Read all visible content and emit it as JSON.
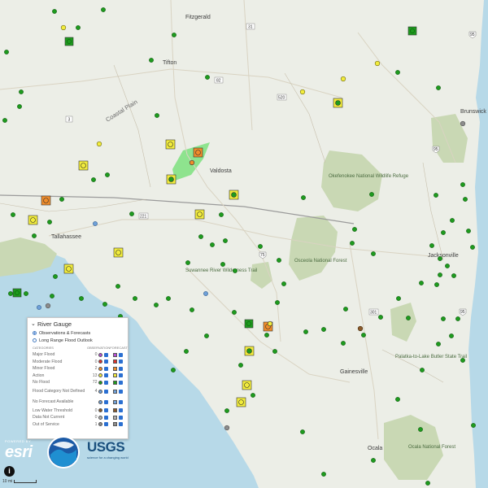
{
  "map": {
    "places": {
      "fitzgerald": "Fitzgerald",
      "tifton": "Tifton",
      "coastal_plain": "Coastal Plain",
      "valdosta": "Valdosta",
      "tallahassee": "Tallahassee",
      "okefenokee": "Okefenokee National Wildlife Refuge",
      "osceola": "Osceola National Forest",
      "suwannee": "Suwannee River Wilderness Trail",
      "jacksonville": "Jacksonville",
      "brunswick": "Brunswick",
      "palatka": "Palatka-to-Lake Butler State Trail",
      "gainesville": "Gainesville",
      "ocala": "Ocala",
      "ocala_nf": "Ocala National Forest"
    },
    "routes": {
      "r31": "31",
      "r95a": "95",
      "r82": "82",
      "r520": "520",
      "r3": "3",
      "r95b": "95",
      "r221": "221",
      "r75": "75",
      "r301": "301",
      "r95c": "95"
    },
    "colors": {
      "no_flood": "#1e9b1e",
      "action": "#f2ec3c",
      "minor": "#f08c2a",
      "low_water": "#8a5a2a",
      "no_forecast": "#6fa0d8",
      "out_of_service": "#8c8c8c",
      "forest": "#c9d8b4",
      "water": "#b7d9e8",
      "flood_area": "#7ee07e"
    }
  },
  "legend": {
    "title": "River Gauge",
    "options": [
      "Observations & Forecasts",
      "Long Range Flood Outlook"
    ],
    "col_categories": "CATEGORIES",
    "col_observation": "OBSERVATION",
    "col_forecast": "FORECAST",
    "rows": [
      {
        "label": "Major Flood",
        "count": "0",
        "color": "#b44fd6"
      },
      {
        "label": "Moderate Flood",
        "count": "0",
        "color": "#e0322b"
      },
      {
        "label": "Minor Flood",
        "count": "2",
        "color": "#f08c2a"
      },
      {
        "label": "Action",
        "count": "13",
        "color": "#f2ec3c"
      },
      {
        "label": "No Flood",
        "count": "72",
        "color": "#1e9b1e"
      },
      {
        "label": "Flood Category Not Defined",
        "count": "4",
        "color": "#6fa0d8"
      },
      {
        "label": "No Forecast Available",
        "count": "",
        "color": "#6fa0d8"
      },
      {
        "label": "Low Water Threshold",
        "count": "0",
        "color": "#8a5a2a"
      },
      {
        "label": "Data Not Current",
        "count": "0",
        "color": "#b0b0b0"
      },
      {
        "label": "Out of Service",
        "count": "1",
        "color": "#8c8c8c"
      }
    ]
  },
  "logos": {
    "esri_powered": "POWERED BY",
    "esri": "esri",
    "usgs": "USGS",
    "usgs_tag": "science for a changing world"
  },
  "scale": {
    "label": "10 mi"
  },
  "info_icon": "info-icon"
}
